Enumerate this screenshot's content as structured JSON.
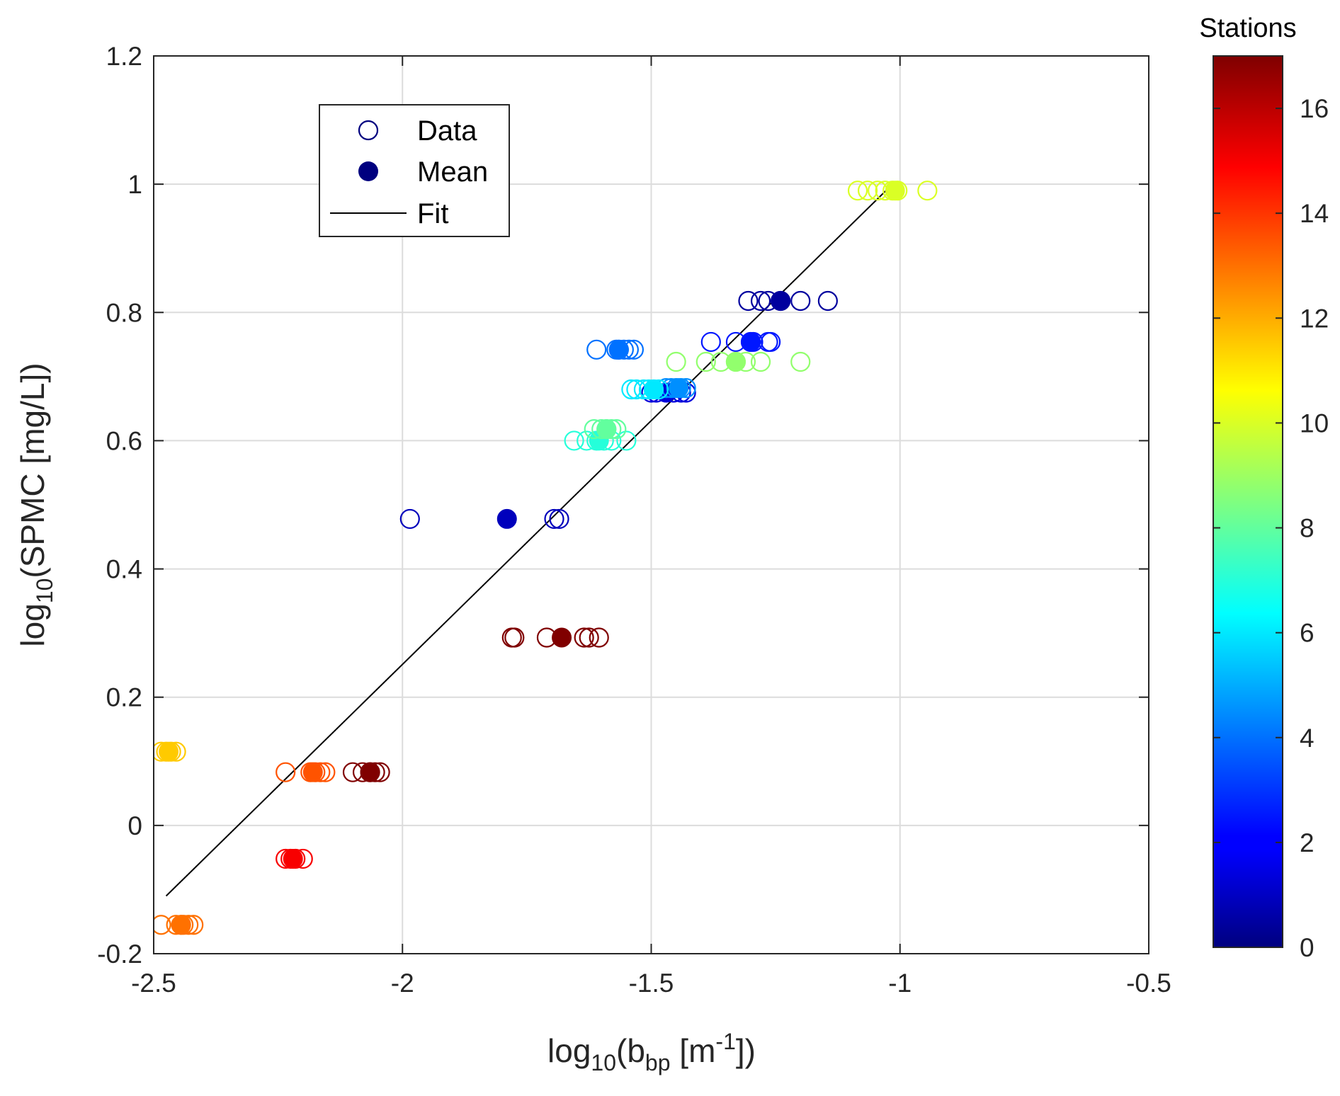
{
  "chart_data": {
    "type": "scatter",
    "title": "",
    "xlabel": {
      "base": "log",
      "sub": "10",
      "open": "(b",
      "var_sub": "bp",
      "unit_open": " [m",
      "sup": "-1",
      "close": "])"
    },
    "ylabel": {
      "base": "log",
      "sub": "10",
      "rest": "(SPMC [mg/L])"
    },
    "xlim": [
      -2.5,
      -0.5
    ],
    "ylim": [
      -0.2,
      1.2
    ],
    "x_ticks": [
      -2.5,
      -2,
      -1.5,
      -1,
      -0.5
    ],
    "x_tick_labels": [
      "-2.5",
      "-2",
      "-1.5",
      "-1",
      "-0.5"
    ],
    "y_ticks": [
      -0.2,
      0,
      0.2,
      0.4,
      0.6,
      0.8,
      1,
      1.2
    ],
    "y_tick_labels": [
      "-0.2",
      "0",
      "0.2",
      "0.4",
      "0.6",
      "0.8",
      "1",
      "1.2"
    ],
    "grid": true,
    "legend": {
      "position": "top-left",
      "entries": [
        {
          "label": "Data",
          "marker": "open-circle"
        },
        {
          "label": "Mean",
          "marker": "filled-circle"
        },
        {
          "label": "Fit",
          "marker": "line"
        }
      ]
    },
    "colorbar": {
      "title": "Stations",
      "colormap": "jet",
      "range": [
        0,
        17
      ],
      "ticks": [
        0,
        2,
        4,
        6,
        8,
        10,
        12,
        14,
        16
      ],
      "tick_labels": [
        "0",
        "2",
        "4",
        "6",
        "8",
        "10",
        "12",
        "14",
        "16"
      ]
    },
    "fit_line": {
      "x": [
        -2.475,
        -1.015
      ],
      "y": [
        -0.11,
        1.0
      ]
    },
    "series": [
      {
        "station": 1,
        "y": 0.478,
        "data_x": [
          -1.985,
          -1.695,
          -1.685
        ],
        "mean_x": -1.79
      },
      {
        "station": 0.5,
        "y": 0.818,
        "data_x": [
          -1.305,
          -1.28,
          -1.265,
          -1.24,
          -1.2,
          -1.145
        ],
        "mean_x": -1.24
      },
      {
        "station": 1.5,
        "y": 0.675,
        "data_x": [
          -1.5,
          -1.49,
          -1.47,
          -1.455,
          -1.44,
          -1.43
        ],
        "mean_x": -1.47
      },
      {
        "station": 2.5,
        "y": 0.754,
        "data_x": [
          -1.38,
          -1.33,
          -1.3,
          -1.295,
          -1.265,
          -1.26
        ],
        "mean_x": -1.3
      },
      {
        "station": 4,
        "y": 0.742,
        "data_x": [
          -1.61,
          -1.57,
          -1.565,
          -1.555,
          -1.545,
          -1.535
        ],
        "mean_x": -1.565
      },
      {
        "station": 4.5,
        "y": 0.682,
        "data_x": [
          -1.47,
          -1.46,
          -1.45,
          -1.44,
          -1.43
        ],
        "mean_x": -1.445
      },
      {
        "station": 6,
        "y": 0.68,
        "data_x": [
          -1.54,
          -1.53,
          -1.515,
          -1.505,
          -1.495,
          -1.485
        ],
        "mean_x": -1.495
      },
      {
        "station": 7,
        "y": 0.6,
        "data_x": [
          -1.655,
          -1.63,
          -1.61,
          -1.595,
          -1.58,
          -1.55
        ],
        "mean_x": -1.605
      },
      {
        "station": 8,
        "y": 0.618,
        "data_x": [
          -1.615,
          -1.6,
          -1.59,
          -1.58,
          -1.57
        ],
        "mean_x": -1.59
      },
      {
        "station": 8.8,
        "y": 0.723,
        "data_x": [
          -1.45,
          -1.39,
          -1.36,
          -1.33,
          -1.31,
          -1.28,
          -1.2
        ],
        "mean_x": -1.33
      },
      {
        "station": 10,
        "y": 0.99,
        "data_x": [
          -1.085,
          -1.065,
          -1.045,
          -1.03,
          -1.015,
          -1.005,
          -0.945
        ],
        "mean_x": -1.01
      },
      {
        "station": 11.5,
        "y": 0.115,
        "data_x": [
          -2.485,
          -2.475,
          -2.465,
          -2.455
        ],
        "mean_x": -2.47
      },
      {
        "station": 13,
        "y": -0.155,
        "data_x": [
          -2.485,
          -2.455,
          -2.445,
          -2.44,
          -2.43,
          -2.42
        ],
        "mean_x": -2.445
      },
      {
        "station": 13.5,
        "y": 0.083,
        "data_x": [
          -2.235,
          -2.185,
          -2.175,
          -2.165,
          -2.155
        ],
        "mean_x": -2.18
      },
      {
        "station": 15,
        "y": -0.052,
        "data_x": [
          -2.235,
          -2.225,
          -2.215,
          -2.2
        ],
        "mean_x": -2.22
      },
      {
        "station": 17,
        "y": 0.083,
        "data_x": [
          -2.1,
          -2.08,
          -2.065,
          -2.055,
          -2.045
        ],
        "mean_x": -2.065
      },
      {
        "station": 17,
        "y": 0.293,
        "data_x": [
          -1.78,
          -1.775,
          -1.71,
          -1.635,
          -1.625,
          -1.605
        ],
        "mean_x": -1.68
      }
    ]
  }
}
